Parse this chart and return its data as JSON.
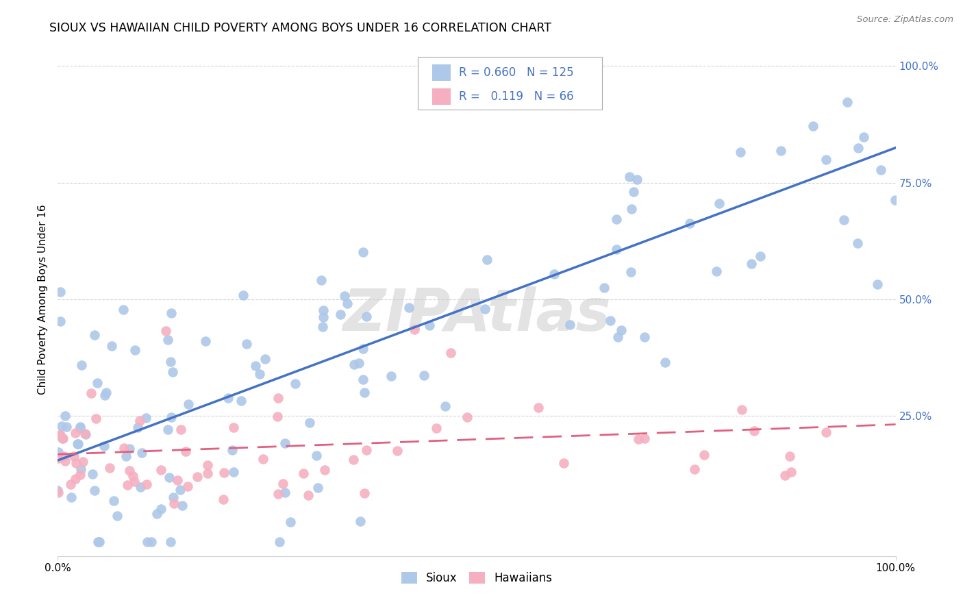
{
  "title": "SIOUX VS HAWAIIAN CHILD POVERTY AMONG BOYS UNDER 16 CORRELATION CHART",
  "source": "Source: ZipAtlas.com",
  "ylabel": "Child Poverty Among Boys Under 16",
  "sioux_R": 0.66,
  "sioux_N": 125,
  "hawaiian_R": 0.119,
  "hawaiian_N": 66,
  "sioux_color": "#adc8e8",
  "hawaiian_color": "#f5afc0",
  "trend_sioux_color": "#4472c4",
  "trend_hawaiian_color": "#e06080",
  "tick_color": "#4472c4",
  "watermark": "ZIPAtlas",
  "legend_label_sioux": "Sioux",
  "legend_label_hawaiian": "Hawaiians",
  "xlim": [
    0.0,
    1.0
  ],
  "ylim": [
    -0.05,
    1.05
  ],
  "sioux_trend_x0": 0.0,
  "sioux_trend_y0": 0.155,
  "sioux_trend_x1": 1.0,
  "sioux_trend_y1": 0.825,
  "hawaiian_trend_x0": 0.0,
  "hawaiian_trend_y0": 0.168,
  "hawaiian_trend_x1": 1.0,
  "hawaiian_trend_y1": 0.232
}
